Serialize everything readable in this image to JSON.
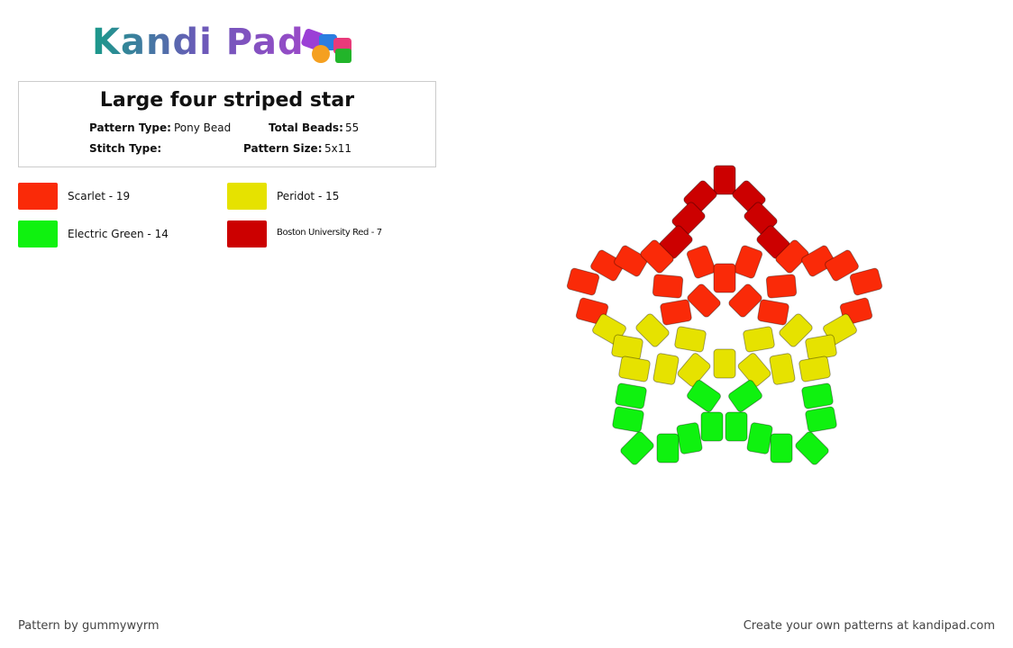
{
  "logo": "Kandi Pad",
  "title": "Large four striped star",
  "info": {
    "pattern_type_label": "Pattern Type:",
    "pattern_type": "Pony Bead",
    "total_beads_label": "Total Beads:",
    "total_beads": 55,
    "stitch_type_label": "Stitch Type:",
    "pattern_size_label": "Pattern Size:",
    "pattern_size": "5x11"
  },
  "legend": [
    {
      "name": "Scarlet - 19",
      "color": "#fa2a08"
    },
    {
      "name": "Peridot - 15",
      "color": "#e6e200"
    },
    {
      "name": "Electric Green - 14",
      "color": "#0ff20f"
    },
    {
      "name": "Boston University Red - 7",
      "color": "#cc0000"
    }
  ],
  "footer": {
    "credit": "Pattern by gummywyrm",
    "promo": "Create your own patterns at kandipad.com"
  }
}
